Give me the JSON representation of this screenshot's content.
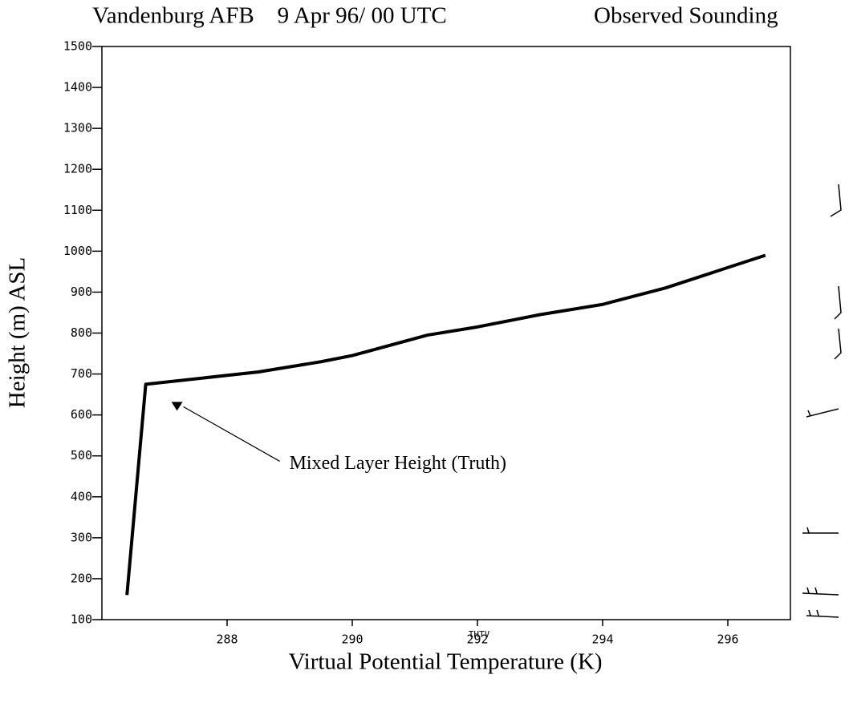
{
  "chart_data": {
    "type": "line",
    "title": "Vandenburg AFB    9 Apr 96/ 00 UTC",
    "subtitle": "Observed Sounding",
    "x_label": "Virtual Potential Temperature (K)",
    "x_sublabel": "THTV",
    "y_label": "Height (m) ASL",
    "annotation": "Mixed Layer Height (Truth)",
    "x": [
      286.4,
      286.7,
      288.5,
      289.5,
      290.0,
      291.2,
      292.0,
      293.0,
      294.0,
      295.0,
      296.0,
      296.6
    ],
    "series": [
      {
        "name": "THTV",
        "color": "#000000",
        "values": [
          160,
          675,
          705,
          730,
          745,
          795,
          815,
          845,
          870,
          910,
          960,
          990
        ]
      }
    ],
    "annotation_point": [
      287.2,
      620
    ],
    "xlim": [
      286,
      297
    ],
    "xticks": [
      288,
      290,
      292,
      294,
      296
    ],
    "ylim": [
      100,
      1500
    ],
    "yticks": [
      100,
      200,
      300,
      400,
      500,
      600,
      700,
      800,
      900,
      1000,
      1100,
      1200,
      1300,
      1400,
      1500
    ],
    "grid": false
  }
}
